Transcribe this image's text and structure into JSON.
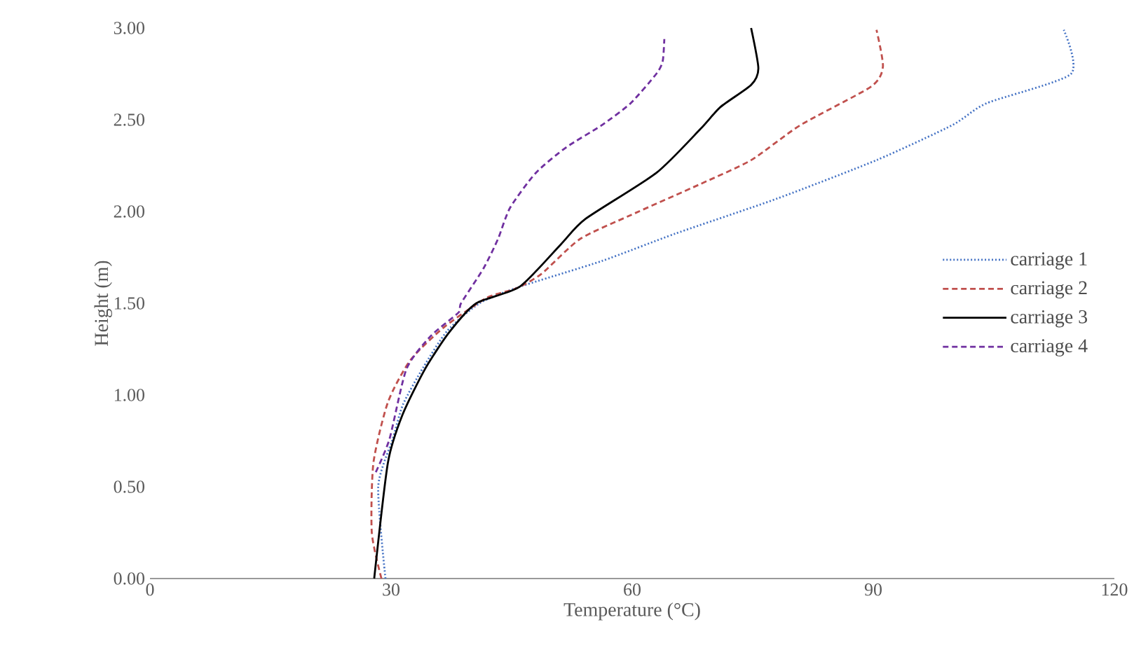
{
  "chart_data": {
    "type": "line",
    "xlabel": "Temperature (°C)",
    "ylabel": "Height (m)",
    "xlim": [
      0,
      120
    ],
    "xticks": [
      0,
      30,
      60,
      90,
      120
    ],
    "ylim": [
      0,
      3
    ],
    "yticks": [
      {
        "value": 0,
        "label": "0.00"
      },
      {
        "value": 0.5,
        "label": "0.50"
      },
      {
        "value": 1,
        "label": "1.00"
      },
      {
        "value": 1.5,
        "label": "1.50"
      },
      {
        "value": 2,
        "label": "2.00"
      },
      {
        "value": 2.5,
        "label": "2.50"
      },
      {
        "value": 3,
        "label": "3.00"
      }
    ],
    "grid": false,
    "legend": "right",
    "marker": "none",
    "series": [
      {
        "name": "carriage 1",
        "color": "#4472c4",
        "line_style": "dotted",
        "x": [
          29.3,
          28.4,
          30.2,
          31.5,
          34,
          37,
          41,
          46,
          56.2,
          65.4,
          78,
          90.4,
          99.8,
          104.1,
          114.6,
          113.7
        ],
        "values": [
          0,
          0.5,
          0.76,
          0.95,
          1.15,
          1.35,
          1.5,
          1.59,
          1.73,
          1.88,
          2.07,
          2.28,
          2.47,
          2.59,
          2.75,
          2.99
        ]
      },
      {
        "name": "carriage 2",
        "color": "#c0504d",
        "line_style": "dashed",
        "x": [
          28.8,
          27.6,
          27.8,
          29.6,
          32.4,
          36.6,
          41.9,
          45.5,
          48.7,
          53.5,
          59.8,
          68.5,
          74.8,
          80.9,
          89.7,
          91.2,
          90.4
        ],
        "values": [
          0,
          0.25,
          0.63,
          0.96,
          1.19,
          1.37,
          1.53,
          1.58,
          1.66,
          1.85,
          1.98,
          2.15,
          2.28,
          2.47,
          2.68,
          2.79,
          2.99
        ]
      },
      {
        "name": "carriage 3",
        "color": "#000000",
        "line_style": "solid",
        "x": [
          27.9,
          29.6,
          31.4,
          34.2,
          37.2,
          40.6,
          46,
          51.1,
          54.2,
          63,
          68.5,
          71,
          74.8,
          75.7,
          74.8
        ],
        "values": [
          0,
          0.63,
          0.89,
          1.14,
          1.34,
          1.5,
          1.59,
          1.82,
          1.96,
          2.21,
          2.45,
          2.57,
          2.69,
          2.78,
          3.0
        ]
      },
      {
        "name": "carriage 4",
        "color": "#7030a0",
        "line_style": "dashed",
        "x": [
          28.1,
          29.8,
          31.9,
          34.9,
          38.4,
          38.7,
          41.5,
          43.3,
          44.8,
          48,
          51.8,
          56.2,
          59.8,
          63,
          63.8,
          64
        ],
        "values": [
          0.58,
          0.76,
          1.14,
          1.32,
          1.45,
          1.5,
          1.69,
          1.85,
          2.02,
          2.21,
          2.35,
          2.47,
          2.59,
          2.75,
          2.82,
          2.94
        ]
      }
    ]
  }
}
